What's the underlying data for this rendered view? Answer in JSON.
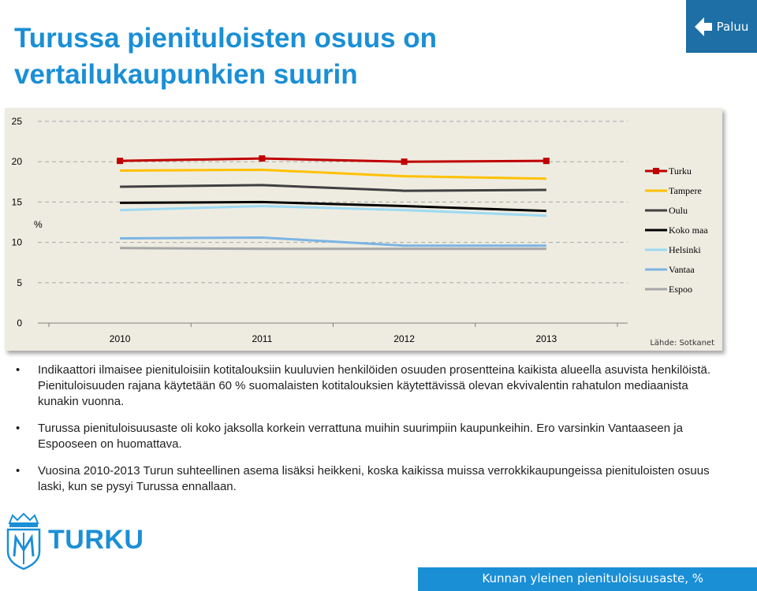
{
  "page": {
    "title": "Turussa pienituloisten osuus on vertailukaupunkien suurin",
    "back_button": "Paluu",
    "footer": "Kunnan yleinen pienituloisuusaste, %",
    "logo_text": "TURKU",
    "notes": [
      "Indikaattori ilmaisee pienituloisiin kotitalouksiin kuuluvien henkilöiden osuuden prosentteina kaikista alueella asuvista henkilöistä. Pienituloisuuden rajana käytetään 60 % suomalaisten kotitalouksien käytettävissä olevan ekvivalentin rahatulon mediaanista kunakin vuonna.",
      "Turussa pienituloisuusaste oli koko jaksolla korkein verrattuna muihin suurimpiin kaupunkeihin. Ero varsinkin Vantaaseen ja Espooseen on huomattava.",
      "Vuosina 2010-2013 Turun suhteellinen asema lisäksi heikkeni, koska kaikissa muissa verrokkikaupungeissa pienituloisten osuus laski, kun se pysyi Turussa ennallaan."
    ]
  },
  "chart_data": {
    "type": "line",
    "x": [
      "2010",
      "2011",
      "2012",
      "2013"
    ],
    "ylabel": "%",
    "ylim": [
      0,
      25
    ],
    "yticks": [
      "0",
      "5",
      "10",
      "15",
      "20",
      "25"
    ],
    "grid": true,
    "legend_position": "right",
    "source": "Lähde: Sotkanet",
    "series": [
      {
        "name": "Turku",
        "color": "#c00000",
        "marker": "square",
        "values": [
          20.1,
          20.4,
          20.0,
          20.1
        ]
      },
      {
        "name": "Tampere",
        "color": "#ffc000",
        "values": [
          18.9,
          19.0,
          18.2,
          17.9
        ]
      },
      {
        "name": "Oulu",
        "color": "#404040",
        "values": [
          16.9,
          17.1,
          16.4,
          16.5
        ]
      },
      {
        "name": "Koko maa",
        "color": "#000000",
        "values": [
          14.9,
          15.0,
          14.5,
          13.9
        ]
      },
      {
        "name": "Helsinki",
        "color": "#9dd9f3",
        "values": [
          14.0,
          14.5,
          14.0,
          13.3
        ]
      },
      {
        "name": "Vantaa",
        "color": "#7cb4e4",
        "values": [
          10.5,
          10.6,
          9.6,
          9.6
        ]
      },
      {
        "name": "Espoo",
        "color": "#a6a6a6",
        "values": [
          9.3,
          9.2,
          9.2,
          9.2
        ]
      }
    ]
  }
}
